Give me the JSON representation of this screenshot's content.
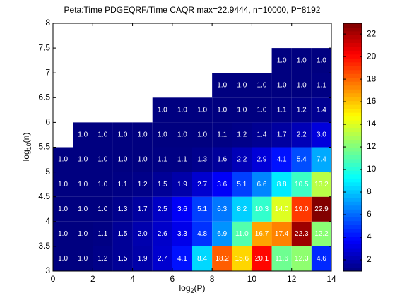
{
  "chart_data": {
    "type": "heatmap",
    "title": "Peta:Time PDGEQRF/Time CAQR  max=22.9444, n=10000, P=8192",
    "xlabel": [
      "log",
      "2",
      "(P)"
    ],
    "ylabel": [
      "log",
      "10",
      "(n)"
    ],
    "colormap": "jet",
    "xbins": [
      0,
      1,
      2,
      3,
      4,
      5,
      6,
      7,
      8,
      9,
      10,
      11,
      12,
      13,
      14
    ],
    "ybins": [
      3,
      3.5,
      4,
      4.5,
      5,
      5.5,
      6,
      6.5,
      7,
      7.5
    ],
    "xlim": [
      0,
      14
    ],
    "xticks": [
      0,
      2,
      4,
      6,
      8,
      10,
      12,
      14
    ],
    "ylim": [
      3,
      8
    ],
    "yticks": [
      3,
      3.5,
      4,
      4.5,
      5,
      5.5,
      6,
      6.5,
      7,
      7.5,
      8
    ],
    "clim": [
      1,
      22.9444
    ],
    "cticks": [
      2,
      4,
      6,
      8,
      10,
      12,
      14,
      16,
      18,
      20,
      22
    ],
    "z": [
      [
        1.0,
        1.0,
        1.2,
        1.5,
        1.9,
        2.7,
        4.1,
        8.4,
        18.2,
        15.6,
        20.1,
        11.6,
        12.3,
        4.6
      ],
      [
        1.0,
        1.0,
        1.1,
        1.5,
        2.0,
        2.6,
        3.3,
        4.8,
        6.9,
        11.0,
        16.7,
        17.4,
        22.3,
        12.2
      ],
      [
        1.0,
        1.0,
        1.0,
        1.3,
        1.7,
        2.5,
        3.6,
        5.1,
        6.3,
        8.2,
        10.3,
        14.0,
        19.0,
        22.9
      ],
      [
        1.0,
        1.0,
        1.0,
        1.1,
        1.2,
        1.5,
        1.9,
        2.7,
        3.6,
        5.1,
        6.6,
        8.8,
        10.5,
        13.2
      ],
      [
        1.0,
        1.0,
        1.0,
        1.0,
        1.0,
        1.1,
        1.1,
        1.3,
        1.6,
        2.2,
        2.9,
        4.1,
        5.4,
        7.4
      ],
      [
        null,
        1.0,
        1.0,
        1.0,
        1.0,
        1.0,
        1.0,
        1.0,
        1.1,
        1.2,
        1.4,
        1.7,
        2.2,
        3.0
      ],
      [
        null,
        null,
        null,
        null,
        null,
        1.0,
        1.0,
        1.0,
        1.0,
        1.0,
        1.0,
        1.1,
        1.2,
        1.4
      ],
      [
        null,
        null,
        null,
        null,
        null,
        null,
        null,
        null,
        1.0,
        1.0,
        1.0,
        1.0,
        1.0,
        1.1
      ],
      [
        null,
        null,
        null,
        null,
        null,
        null,
        null,
        null,
        null,
        null,
        null,
        1.0,
        1.0,
        1.0
      ]
    ],
    "value_labels": [
      [
        "1.0",
        "1.0",
        "1.2",
        "1.5",
        "1.9",
        "2.7",
        "4.1",
        "8.4",
        "18.2",
        "15.6",
        "20.1",
        "11.6",
        "12.3",
        "4.6"
      ],
      [
        "1.0",
        "1.0",
        "1.1",
        "1.5",
        "2.0",
        "2.6",
        "3.3",
        "4.8",
        "6.9",
        "11.0",
        "16.7",
        "17.4",
        "22.3",
        "12.2"
      ],
      [
        "1.0",
        "1.0",
        "1.0",
        "1.3",
        "1.7",
        "2.5",
        "3.6",
        "5.1",
        "6.3",
        "8.2",
        "10.3",
        "14.0",
        "19.0",
        "22.9"
      ],
      [
        "1.0",
        "1.0",
        "1.0",
        "1.1",
        "1.2",
        "1.5",
        "1.9",
        "2.7",
        "3.6",
        "5.1",
        "6.6",
        "8.8",
        "10.5",
        "13.2"
      ],
      [
        "1.0",
        "1.0",
        "1.0",
        "1.0",
        "1.0",
        "1.1",
        "1.1",
        "1.3",
        "1.6",
        "2.2",
        "2.9",
        "4.1",
        "5.4",
        "7.4"
      ],
      [
        null,
        "1.0",
        "1.0",
        "1.0",
        "1.0",
        "1.0",
        "1.0",
        "1.0",
        "1.1",
        "1.2",
        "1.4",
        "1.7",
        "2.2",
        "3.0"
      ],
      [
        null,
        null,
        null,
        null,
        null,
        "1.0",
        "1.0",
        "1.0",
        "1.0",
        "1.0",
        "1.0",
        "1.1",
        "1.2",
        "1.4"
      ],
      [
        null,
        null,
        null,
        null,
        null,
        null,
        null,
        null,
        "1.0",
        "1.0",
        "1.0",
        "1.0",
        "1.0",
        "1.1"
      ],
      [
        null,
        null,
        null,
        null,
        null,
        null,
        null,
        null,
        null,
        null,
        null,
        "1.0",
        "1.0",
        "1.0"
      ]
    ]
  }
}
